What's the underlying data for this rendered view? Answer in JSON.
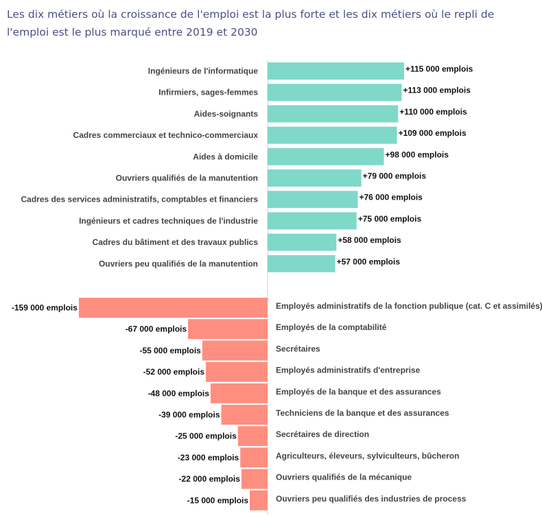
{
  "title": "Les dix métiers où la croissance de l'emploi est la plus forte et les dix métiers où le repli de l'emploi est le plus marqué entre 2019 et 2030",
  "colors": {
    "positive": "#7fd8c8",
    "negative": "#fe8f80",
    "axis": "#cfcfcf"
  },
  "chart_data": [
    {
      "type": "bar",
      "orientation": "horizontal",
      "series": [
        {
          "name": "Croissance de l'emploi",
          "color": "#7fd8c8"
        }
      ],
      "categories": [
        "Ingénieurs de l'informatique",
        "Infirmiers, sages-femmes",
        "Aides-soignants",
        "Cadres commerciaux et technico-commerciaux",
        "Aides à domicile",
        "Ouvriers qualifiés de la manutention",
        "Cadres des services administratifs, comptables et financiers",
        "Ingénieurs et cadres techniques de l'industrie",
        "Cadres du bâtiment et des travaux publics",
        "Ouvriers peu qualifiés de la manutention"
      ],
      "values": [
        115000,
        113000,
        110000,
        109000,
        98000,
        79000,
        76000,
        75000,
        58000,
        57000
      ],
      "labels": [
        "+115 000 emplois",
        "+113 000 emplois",
        "+110 000 emplois",
        "+109 000 emplois",
        "+98 000 emplois",
        "+79 000 emplois",
        "+76 000 emplois",
        "+75 000 emplois",
        "+58 000 emplois",
        "+57 000 emplois"
      ]
    },
    {
      "type": "bar",
      "orientation": "horizontal",
      "series": [
        {
          "name": "Repli de l'emploi",
          "color": "#fe8f80"
        }
      ],
      "categories": [
        "Employés administratifs de la fonction publique (cat. C et assimilés)",
        "Employés de la comptabilité",
        "Secrétaires",
        "Employés administratifs d'entreprise",
        "Employés de la banque et des assurances",
        "Techniciens de la banque et des assurances",
        "Secrétaires de direction",
        "Agriculteurs, éleveurs, sylviculteurs, bûcheron",
        "Ouvriers qualifiés de la mécanique",
        "Ouvriers peu qualifiés des industries de process"
      ],
      "values": [
        -159000,
        -67000,
        -55000,
        -52000,
        -48000,
        -39000,
        -25000,
        -23000,
        -22000,
        -15000
      ],
      "labels": [
        "-159 000 emplois",
        "-67 000 emplois",
        "-55 000 emplois",
        "-52 000 emplois",
        "-48 000 emplois",
        "-39 000 emplois",
        "-25 000 emplois",
        "-23 000 emplois",
        "-22 000 emplois",
        "-15 000 emplois"
      ]
    }
  ]
}
